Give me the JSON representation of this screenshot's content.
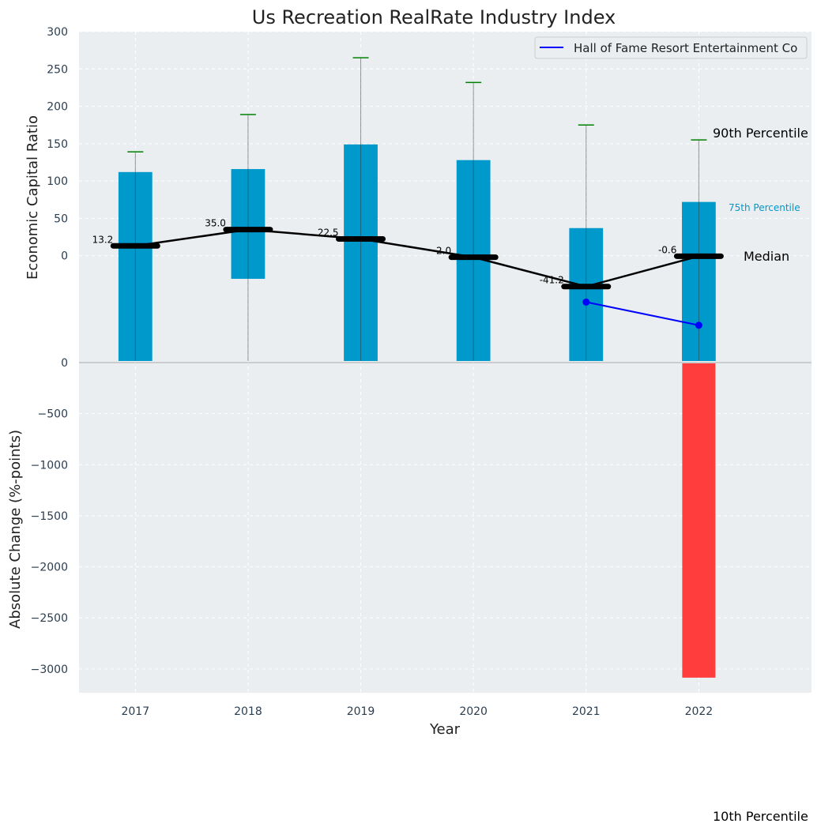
{
  "chart_data": [
    {
      "type": "bar",
      "panel": "top",
      "title": "Us Recreation RealRate Industry Index",
      "ylabel": "Economic Capital Ratio",
      "ylim": [
        -143,
        300
      ],
      "yticks": [
        0,
        50,
        100,
        150,
        200,
        250,
        300
      ],
      "categories": [
        "2017",
        "2018",
        "2019",
        "2020",
        "2021",
        "2022"
      ],
      "bar_low": [
        -143,
        -33,
        -143,
        -143,
        -143,
        -143
      ],
      "p75": [
        112,
        116,
        149,
        128,
        37,
        72
      ],
      "p90": [
        139,
        189,
        265,
        232,
        175,
        155
      ],
      "median": [
        13.2,
        35.0,
        22.5,
        -2.0,
        -41.2,
        -0.6
      ],
      "median_labels": [
        "13.2",
        "35.0",
        "22.5",
        "-2.0",
        "-41.2",
        "-0.6"
      ],
      "company": {
        "name": "Hall of Fame Resort Entertainment Co",
        "years": [
          "2021",
          "2022"
        ],
        "values": [
          -62,
          -93
        ]
      },
      "annotations": {
        "p90": "90th Percentile",
        "p75": "75th Percentile",
        "median": "Median",
        "p10": "10th Percentile"
      },
      "legend": "top-right",
      "grid": true
    },
    {
      "type": "bar",
      "panel": "bottom",
      "xlabel": "Year",
      "ylabel": "Absolute Change (%-points)",
      "ylim": [
        -3233,
        0
      ],
      "yticks": [
        0,
        -500,
        -1000,
        -1500,
        -2000,
        -2500,
        -3000
      ],
      "categories": [
        "2022"
      ],
      "values": [
        -3085
      ]
    }
  ],
  "colors": {
    "bar": "#0099cc",
    "neg": "#ff3d3d",
    "median": "#000000",
    "company": "#0000ff",
    "whisker": "#008000",
    "bg": "#eaeef0"
  }
}
